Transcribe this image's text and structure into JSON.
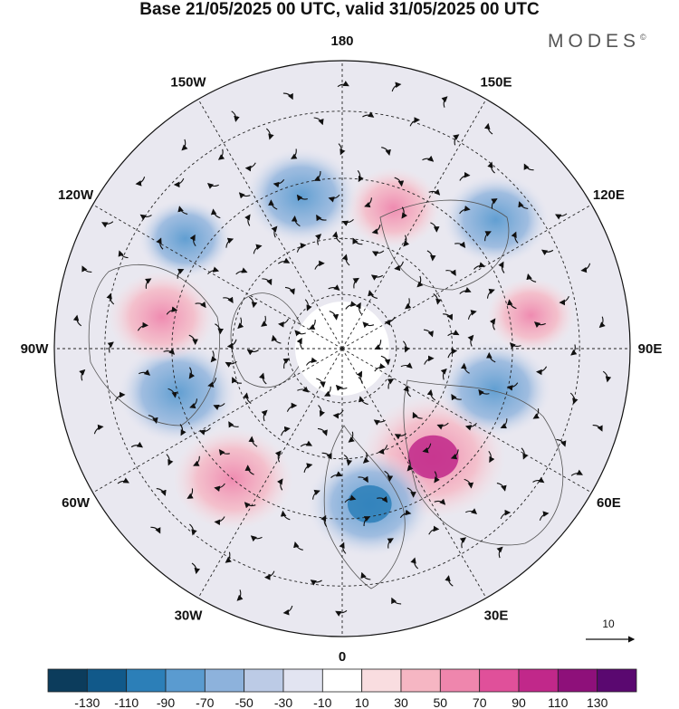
{
  "header": {
    "title": "Base 21/05/2025 00 UTC, valid 31/05/2025 00 UTC",
    "brand": "MODES",
    "brand_mark": "©"
  },
  "map": {
    "projection": "north polar stereographic",
    "longitude_labels": [
      {
        "text": "180",
        "lon": 180
      },
      {
        "text": "150E",
        "lon": 150
      },
      {
        "text": "120E",
        "lon": 120
      },
      {
        "text": "90E",
        "lon": 90
      },
      {
        "text": "60E",
        "lon": 60
      },
      {
        "text": "30E",
        "lon": 30
      },
      {
        "text": "0",
        "lon": 0
      },
      {
        "text": "30W",
        "lon": -30
      },
      {
        "text": "60W",
        "lon": -60
      },
      {
        "text": "90W",
        "lon": -90
      },
      {
        "text": "120W",
        "lon": -120
      },
      {
        "text": "150W",
        "lon": -150
      }
    ],
    "anomaly_centers": [
      {
        "lon": 40,
        "lat": 52,
        "value": 120
      },
      {
        "lon": 10,
        "lat": 48,
        "value": -90
      },
      {
        "lon": -40,
        "lat": 45,
        "value": 80
      },
      {
        "lon": -75,
        "lat": 45,
        "value": -80
      },
      {
        "lon": -100,
        "lat": 42,
        "value": 60
      },
      {
        "lon": 75,
        "lat": 48,
        "value": -70
      },
      {
        "lon": 100,
        "lat": 40,
        "value": 30
      },
      {
        "lon": 130,
        "lat": 38,
        "value": -60
      },
      {
        "lon": 160,
        "lat": 50,
        "value": 40
      },
      {
        "lon": -165,
        "lat": 48,
        "value": -70
      },
      {
        "lon": -125,
        "lat": 40,
        "value": -40
      }
    ]
  },
  "wind_scale": {
    "label": "10"
  },
  "colorbar": {
    "colors": [
      "#0c3c5c",
      "#11598a",
      "#2c7fb8",
      "#5a9bd0",
      "#8db2dc",
      "#bccbe6",
      "#e2e4f1",
      "#ffffff",
      "#f9dde0",
      "#f6b6c3",
      "#ef86ad",
      "#e0509a",
      "#c1288a",
      "#8e107a",
      "#5a0870"
    ],
    "ticks": [
      "-130",
      "-110",
      "-90",
      "-70",
      "-50",
      "-30",
      "-10",
      "10",
      "30",
      "50",
      "70",
      "90",
      "110",
      "130"
    ]
  }
}
